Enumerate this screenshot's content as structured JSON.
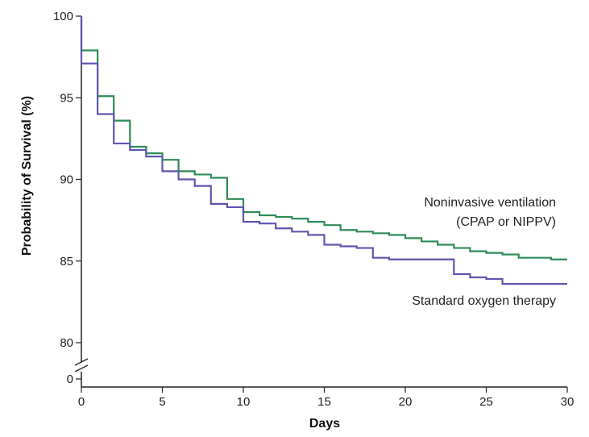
{
  "chart_data": {
    "type": "line",
    "title": "",
    "xlabel": "Days",
    "ylabel": "Probability of Survival (%)",
    "xlim": [
      0,
      30
    ],
    "ylim": [
      80,
      100
    ],
    "y_axis_break": true,
    "x_ticks": [
      {
        "value": 0,
        "label": "0"
      },
      {
        "value": 5,
        "label": "5"
      },
      {
        "value": 10,
        "label": "10"
      },
      {
        "value": 15,
        "label": "15"
      },
      {
        "value": 20,
        "label": "20"
      },
      {
        "value": 25,
        "label": "25"
      },
      {
        "value": 30,
        "label": "30"
      }
    ],
    "y_ticks": [
      {
        "value": 100,
        "label": "100"
      },
      {
        "value": 95,
        "label": "95"
      },
      {
        "value": 90,
        "label": "90"
      },
      {
        "value": 85,
        "label": "85"
      },
      {
        "value": 80,
        "label": "80"
      }
    ],
    "y_break_tick": {
      "label": "0"
    },
    "grid": false,
    "step": true,
    "series": [
      {
        "name": "Noninvasive ventilation (CPAP or NIPPV)",
        "label_lines": [
          "Noninvasive ventilation",
          "(CPAP or NIPPV)"
        ],
        "color": "#2e8b57",
        "x": [
          0,
          1,
          2,
          3,
          4,
          5,
          6,
          7,
          8,
          9,
          10,
          11,
          12,
          13,
          14,
          15,
          16,
          17,
          18,
          19,
          20,
          21,
          22,
          23,
          24,
          25,
          26,
          27,
          28,
          29,
          30
        ],
        "y": [
          97.9,
          95.1,
          93.6,
          92.0,
          91.6,
          91.2,
          90.5,
          90.3,
          90.1,
          88.8,
          88.0,
          87.8,
          87.7,
          87.6,
          87.4,
          87.2,
          86.9,
          86.8,
          86.7,
          86.6,
          86.4,
          86.2,
          86.0,
          85.8,
          85.6,
          85.5,
          85.4,
          85.2,
          85.2,
          85.1,
          85.1
        ]
      },
      {
        "name": "Standard oxygen therapy",
        "label_lines": [
          "Standard oxygen therapy"
        ],
        "color": "#5f55b0",
        "x": [
          0,
          1,
          2,
          3,
          4,
          5,
          6,
          7,
          8,
          9,
          10,
          11,
          12,
          13,
          14,
          15,
          16,
          17,
          18,
          19,
          20,
          21,
          22,
          23,
          24,
          25,
          26,
          27,
          28,
          29,
          30
        ],
        "y": [
          97.1,
          94.0,
          92.2,
          91.8,
          91.4,
          90.5,
          90.0,
          89.6,
          88.5,
          88.3,
          87.4,
          87.3,
          87.0,
          86.8,
          86.6,
          86.0,
          85.9,
          85.8,
          85.2,
          85.1,
          85.1,
          85.1,
          85.1,
          84.2,
          84.0,
          83.9,
          83.6,
          83.6,
          83.6,
          83.6,
          83.6
        ]
      }
    ]
  }
}
